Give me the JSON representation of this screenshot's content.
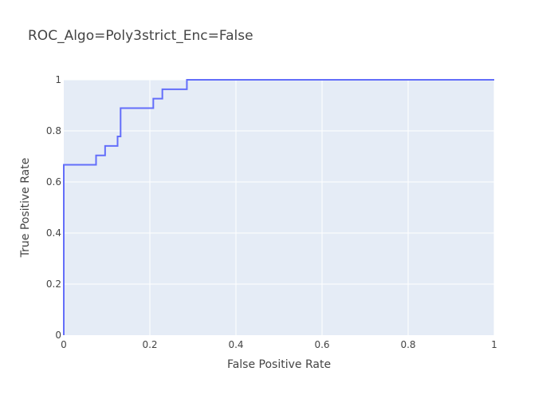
{
  "chart_data": {
    "type": "line",
    "title": "ROC_Algo=Poly3strict_Enc=False",
    "xlabel": "False Positive Rate",
    "ylabel": "True Positive Rate",
    "xlim": [
      0,
      1
    ],
    "ylim": [
      0,
      1
    ],
    "grid": true,
    "legend": "none",
    "x_ticks": [
      "0",
      "0.2",
      "0.4",
      "0.6",
      "0.8",
      "1"
    ],
    "y_ticks": [
      "0",
      "0.2",
      "0.4",
      "0.6",
      "0.8",
      "1"
    ],
    "series": [
      {
        "color": "#636efa",
        "x": [
          0,
          0,
          0.075,
          0.075,
          0.096,
          0.096,
          0.125,
          0.125,
          0.132,
          0.132,
          0.208,
          0.208,
          0.229,
          0.229,
          0.286,
          0.286,
          1
        ],
        "y": [
          0,
          0.667,
          0.667,
          0.704,
          0.704,
          0.741,
          0.741,
          0.778,
          0.778,
          0.889,
          0.889,
          0.926,
          0.926,
          0.963,
          0.963,
          1,
          1
        ]
      }
    ]
  },
  "colors": {
    "plot_background": "#e5ecf6",
    "grid": "#ffffff",
    "line": "#636efa"
  }
}
